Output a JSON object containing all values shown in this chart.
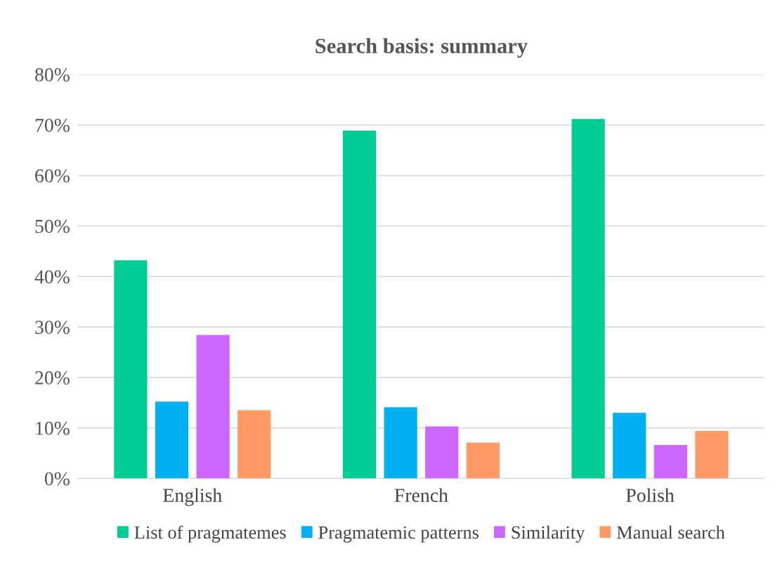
{
  "chart_data": {
    "type": "bar",
    "title": "Search basis: summary",
    "categories": [
      "English",
      "French",
      "Polish"
    ],
    "series": [
      {
        "name": "List of pragmatemes",
        "color": "#00cc96",
        "values": [
          43.2,
          68.9,
          71.2
        ]
      },
      {
        "name": "Pragmatemic patterns",
        "color": "#00b0f0",
        "values": [
          15.2,
          14.1,
          13.0
        ]
      },
      {
        "name": "Similarity",
        "color": "#cc66ff",
        "values": [
          28.4,
          10.3,
          6.6
        ]
      },
      {
        "name": "Manual search",
        "color": "#ff9966",
        "values": [
          13.5,
          7.1,
          9.4
        ]
      }
    ],
    "ylim": [
      0,
      80
    ],
    "yticks": [
      {
        "value": 0,
        "label": "0%"
      },
      {
        "value": 10,
        "label": "10%"
      },
      {
        "value": 20,
        "label": "20%"
      },
      {
        "value": 30,
        "label": "30%"
      },
      {
        "value": 40,
        "label": "40%"
      },
      {
        "value": 50,
        "label": "50%"
      },
      {
        "value": 60,
        "label": "60%"
      },
      {
        "value": 70,
        "label": "70%"
      },
      {
        "value": 80,
        "label": "80%"
      }
    ],
    "grid": "y",
    "legend": "bottom"
  }
}
